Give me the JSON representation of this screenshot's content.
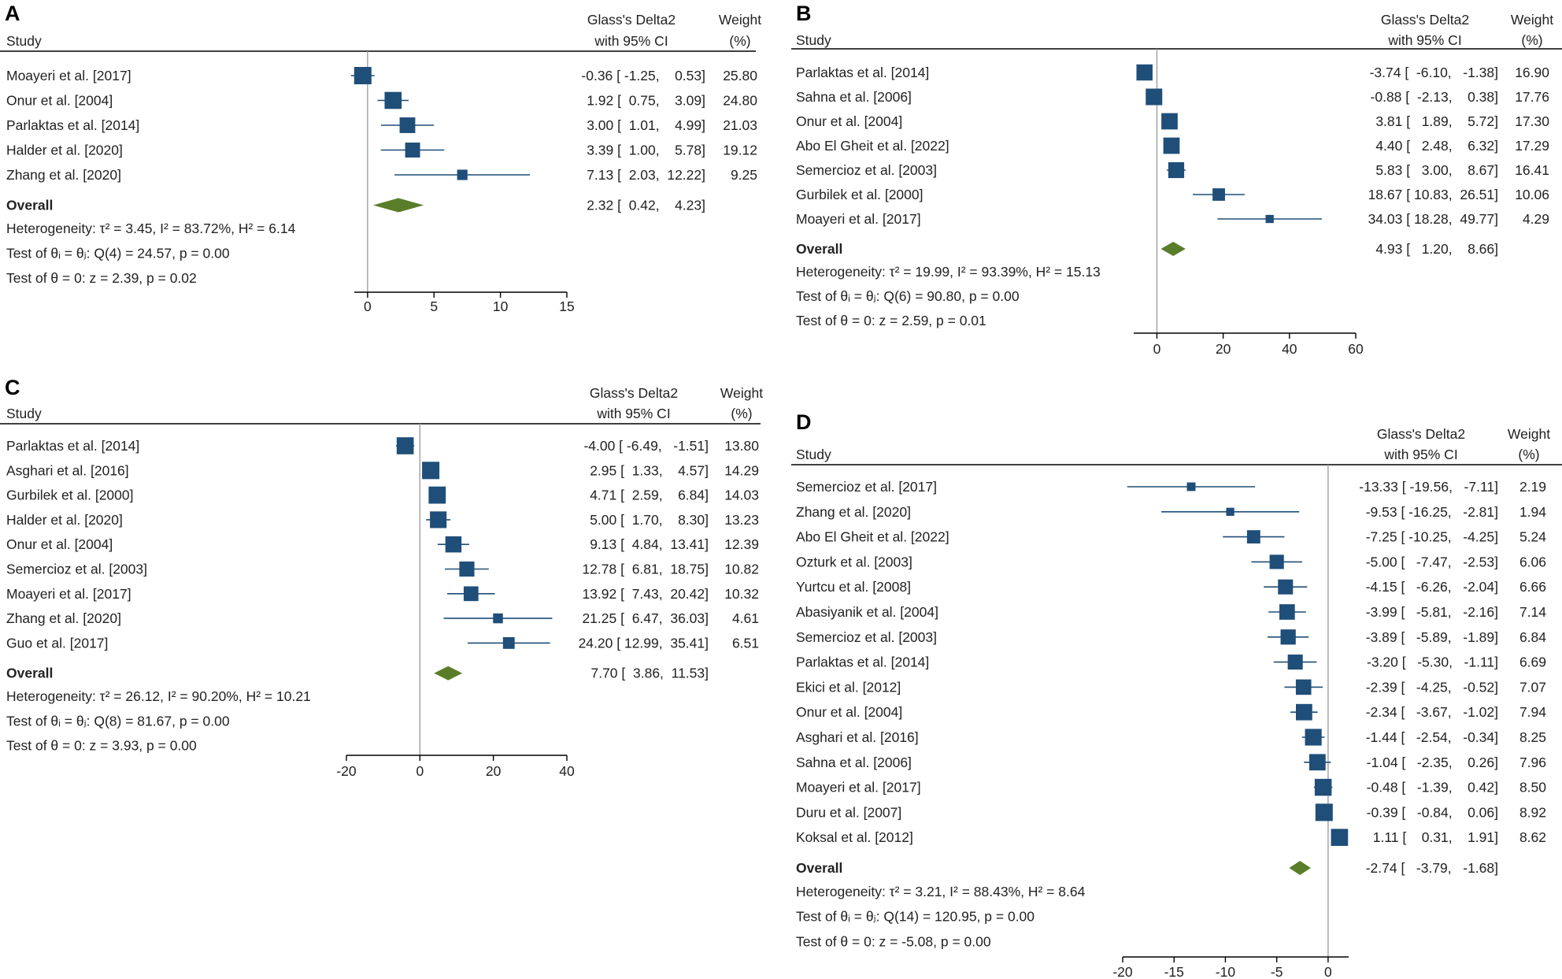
{
  "figure": {
    "colors": {
      "marker": "#1f4e79",
      "diamond": "#5a7d2a",
      "line": "#000000",
      "ref_line": "#9e9e9e"
    }
  },
  "chart_data": [
    {
      "type": "forest",
      "panel": "A",
      "header": {
        "study": "Study",
        "effect_line1": "Glass's Delta2",
        "effect_line2": "with 95% CI",
        "weight_line1": "Weight",
        "weight_line2": "(%)"
      },
      "studies": [
        {
          "name": "Moayeri et al. [2017]",
          "effect": -0.36,
          "lo": -1.25,
          "hi": 0.53,
          "weight": 25.8,
          "ci_text": "-0.36 [ -1.25,    0.53]",
          "weight_text": "25.80"
        },
        {
          "name": "Onur et al. [2004]",
          "effect": 1.92,
          "lo": 0.75,
          "hi": 3.09,
          "weight": 24.8,
          "ci_text": "1.92 [  0.75,    3.09]",
          "weight_text": "24.80"
        },
        {
          "name": "Parlaktas et al. [2014]",
          "effect": 3.0,
          "lo": 1.01,
          "hi": 4.99,
          "weight": 21.03,
          "ci_text": "3.00 [  1.01,    4.99]",
          "weight_text": "21.03"
        },
        {
          "name": "Halder et al. [2020]",
          "effect": 3.39,
          "lo": 1.0,
          "hi": 5.78,
          "weight": 19.12,
          "ci_text": "3.39 [  1.00,    5.78]",
          "weight_text": "19.12"
        },
        {
          "name": "Zhang et al. [2020]",
          "effect": 7.13,
          "lo": 2.03,
          "hi": 12.22,
          "weight": 9.25,
          "ci_text": "7.13 [  2.03,  12.22]",
          "weight_text": "9.25"
        }
      ],
      "overall": {
        "label": "Overall",
        "effect": 2.32,
        "lo": 0.42,
        "hi": 4.23,
        "ci_text": "2.32 [  0.42,    4.23]"
      },
      "stats": {
        "heterogeneity": "Heterogeneity: τ² = 3.45, I² = 83.72%, H² = 6.14",
        "homogeneity": "Test of θᵢ = θⱼ: Q(4) = 24.57, p = 0.00",
        "theta": "Test of θ = 0: z = 2.39, p = 0.02"
      },
      "axis": {
        "min": -1,
        "max": 15,
        "ticks": [
          0,
          5,
          10,
          15
        ]
      }
    },
    {
      "type": "forest",
      "panel": "B",
      "header": {
        "study": "Study",
        "effect_line1": "Glass's Delta2",
        "effect_line2": "with 95% CI",
        "weight_line1": "Weight",
        "weight_line2": "(%)"
      },
      "studies": [
        {
          "name": "Parlaktas et al. [2014]",
          "effect": -3.74,
          "lo": -6.1,
          "hi": -1.38,
          "weight": 16.9,
          "ci_text": "-3.74 [  -6.10,   -1.38]",
          "weight_text": "16.90"
        },
        {
          "name": "Sahna et al. [2006]",
          "effect": -0.88,
          "lo": -2.13,
          "hi": 0.38,
          "weight": 17.76,
          "ci_text": "-0.88 [  -2.13,    0.38]",
          "weight_text": "17.76"
        },
        {
          "name": "Onur et al. [2004]",
          "effect": 3.81,
          "lo": 1.89,
          "hi": 5.72,
          "weight": 17.3,
          "ci_text": "3.81 [   1.89,    5.72]",
          "weight_text": "17.30"
        },
        {
          "name": "Abo El Gheit et al. [2022]",
          "effect": 4.4,
          "lo": 2.48,
          "hi": 6.32,
          "weight": 17.29,
          "ci_text": "4.40 [   2.48,    6.32]",
          "weight_text": "17.29"
        },
        {
          "name": "Semercioz et al. [2003]",
          "effect": 5.83,
          "lo": 3.0,
          "hi": 8.67,
          "weight": 16.41,
          "ci_text": "5.83 [   3.00,    8.67]",
          "weight_text": "16.41"
        },
        {
          "name": "Gurbilek et al. [2000]",
          "effect": 18.67,
          "lo": 10.83,
          "hi": 26.51,
          "weight": 10.06,
          "ci_text": "18.67 [ 10.83,  26.51]",
          "weight_text": "10.06"
        },
        {
          "name": "Moayeri et al. [2017]",
          "effect": 34.03,
          "lo": 18.28,
          "hi": 49.77,
          "weight": 4.29,
          "ci_text": "34.03 [ 18.28,  49.77]",
          "weight_text": "4.29"
        }
      ],
      "overall": {
        "label": "Overall",
        "effect": 4.93,
        "lo": 1.2,
        "hi": 8.66,
        "ci_text": "4.93 [   1.20,    8.66]"
      },
      "stats": {
        "heterogeneity": "Heterogeneity: τ² = 19.99, I² = 93.39%, H² = 15.13",
        "homogeneity": "Test of θᵢ = θⱼ: Q(6) = 90.80, p = 0.00",
        "theta": "Test of θ = 0: z = 2.59, p = 0.01"
      },
      "axis": {
        "min": -7,
        "max": 60,
        "ticks": [
          0,
          20,
          40,
          60
        ]
      }
    },
    {
      "type": "forest",
      "panel": "C",
      "header": {
        "study": "Study",
        "effect_line1": "Glass's Delta2",
        "effect_line2": "with 95% CI",
        "weight_line1": "Weight",
        "weight_line2": "(%)"
      },
      "studies": [
        {
          "name": "Parlaktas et al. [2014]",
          "effect": -4.0,
          "lo": -6.49,
          "hi": -1.51,
          "weight": 13.8,
          "ci_text": "-4.00 [ -6.49,   -1.51]",
          "weight_text": "13.80"
        },
        {
          "name": "Asghari et al. [2016]",
          "effect": 2.95,
          "lo": 1.33,
          "hi": 4.57,
          "weight": 14.29,
          "ci_text": "2.95 [  1.33,    4.57]",
          "weight_text": "14.29"
        },
        {
          "name": "Gurbilek et al. [2000]",
          "effect": 4.71,
          "lo": 2.59,
          "hi": 6.84,
          "weight": 14.03,
          "ci_text": "4.71 [  2.59,    6.84]",
          "weight_text": "14.03"
        },
        {
          "name": "Halder et al. [2020]",
          "effect": 5.0,
          "lo": 1.7,
          "hi": 8.3,
          "weight": 13.23,
          "ci_text": "5.00 [  1.70,    8.30]",
          "weight_text": "13.23"
        },
        {
          "name": "Onur et al. [2004]",
          "effect": 9.13,
          "lo": 4.84,
          "hi": 13.41,
          "weight": 12.39,
          "ci_text": "9.13 [  4.84,  13.41]",
          "weight_text": "12.39"
        },
        {
          "name": "Semercioz et al. [2003]",
          "effect": 12.78,
          "lo": 6.81,
          "hi": 18.75,
          "weight": 10.82,
          "ci_text": "12.78 [  6.81,  18.75]",
          "weight_text": "10.82"
        },
        {
          "name": "Moayeri et al. [2017]",
          "effect": 13.92,
          "lo": 7.43,
          "hi": 20.42,
          "weight": 10.32,
          "ci_text": "13.92 [  7.43,  20.42]",
          "weight_text": "10.32"
        },
        {
          "name": "Zhang et al. [2020]",
          "effect": 21.25,
          "lo": 6.47,
          "hi": 36.03,
          "weight": 4.61,
          "ci_text": "21.25 [  6.47,  36.03]",
          "weight_text": "4.61"
        },
        {
          "name": "Guo et al. [2017]",
          "effect": 24.2,
          "lo": 12.99,
          "hi": 35.41,
          "weight": 6.51,
          "ci_text": "24.20 [ 12.99,  35.41]",
          "weight_text": "6.51"
        }
      ],
      "overall": {
        "label": "Overall",
        "effect": 7.7,
        "lo": 3.86,
        "hi": 11.53,
        "ci_text": "7.70 [  3.86,  11.53]"
      },
      "stats": {
        "heterogeneity": "Heterogeneity: τ² = 26.12, I² = 90.20%, H² = 10.21",
        "homogeneity": "Test of θᵢ = θⱼ: Q(8) = 81.67, p = 0.00",
        "theta": "Test of θ = 0: z = 3.93, p = 0.00"
      },
      "axis": {
        "min": -20,
        "max": 40,
        "ticks": [
          -20,
          0,
          20,
          40
        ]
      }
    },
    {
      "type": "forest",
      "panel": "D",
      "header": {
        "study": "Study",
        "effect_line1": "Glass's Delta2",
        "effect_line2": "with 95% CI",
        "weight_line1": "Weight",
        "weight_line2": "(%)"
      },
      "studies": [
        {
          "name": "Semercioz et al. [2017]",
          "effect": -13.33,
          "lo": -19.56,
          "hi": -7.11,
          "weight": 2.19,
          "ci_text": "-13.33 [ -19.56,   -7.11]",
          "weight_text": "2.19"
        },
        {
          "name": "Zhang et al. [2020]",
          "effect": -9.53,
          "lo": -16.25,
          "hi": -2.81,
          "weight": 1.94,
          "ci_text": "-9.53 [ -16.25,   -2.81]",
          "weight_text": "1.94"
        },
        {
          "name": "Abo El Gheit et al. [2022]",
          "effect": -7.25,
          "lo": -10.25,
          "hi": -4.25,
          "weight": 5.24,
          "ci_text": "-7.25 [ -10.25,   -4.25]",
          "weight_text": "5.24"
        },
        {
          "name": "Ozturk et al. [2003]",
          "effect": -5.0,
          "lo": -7.47,
          "hi": -2.53,
          "weight": 6.06,
          "ci_text": "-5.00 [   -7.47,   -2.53]",
          "weight_text": "6.06"
        },
        {
          "name": "Yurtcu et al. [2008]",
          "effect": -4.15,
          "lo": -6.26,
          "hi": -2.04,
          "weight": 6.66,
          "ci_text": "-4.15 [   -6.26,   -2.04]",
          "weight_text": "6.66"
        },
        {
          "name": "Abasiyanik et al. [2004]",
          "effect": -3.99,
          "lo": -5.81,
          "hi": -2.16,
          "weight": 7.14,
          "ci_text": "-3.99 [   -5.81,   -2.16]",
          "weight_text": "7.14"
        },
        {
          "name": "Semercioz et al. [2003]",
          "effect": -3.89,
          "lo": -5.89,
          "hi": -1.89,
          "weight": 6.84,
          "ci_text": "-3.89 [   -5.89,   -1.89]",
          "weight_text": "6.84"
        },
        {
          "name": "Parlaktas et al. [2014]",
          "effect": -3.2,
          "lo": -5.3,
          "hi": -1.11,
          "weight": 6.69,
          "ci_text": "-3.20 [   -5.30,   -1.11]",
          "weight_text": "6.69"
        },
        {
          "name": "Ekici et al. [2012]",
          "effect": -2.39,
          "lo": -4.25,
          "hi": -0.52,
          "weight": 7.07,
          "ci_text": "-2.39 [   -4.25,   -0.52]",
          "weight_text": "7.07"
        },
        {
          "name": "Onur et al. [2004]",
          "effect": -2.34,
          "lo": -3.67,
          "hi": -1.02,
          "weight": 7.94,
          "ci_text": "-2.34 [   -3.67,   -1.02]",
          "weight_text": "7.94"
        },
        {
          "name": "Asghari et al. [2016]",
          "effect": -1.44,
          "lo": -2.54,
          "hi": -0.34,
          "weight": 8.25,
          "ci_text": "-1.44 [   -2.54,   -0.34]",
          "weight_text": "8.25"
        },
        {
          "name": "Sahna et al. [2006]",
          "effect": -1.04,
          "lo": -2.35,
          "hi": 0.26,
          "weight": 7.96,
          "ci_text": "-1.04 [   -2.35,    0.26]",
          "weight_text": "7.96"
        },
        {
          "name": "Moayeri et al. [2017]",
          "effect": -0.48,
          "lo": -1.39,
          "hi": 0.42,
          "weight": 8.5,
          "ci_text": "-0.48 [   -1.39,    0.42]",
          "weight_text": "8.50"
        },
        {
          "name": "Duru et al. [2007]",
          "effect": -0.39,
          "lo": -0.84,
          "hi": 0.06,
          "weight": 8.92,
          "ci_text": "-0.39 [   -0.84,    0.06]",
          "weight_text": "8.92"
        },
        {
          "name": "Koksal et al. [2012]",
          "effect": 1.11,
          "lo": 0.31,
          "hi": 1.91,
          "weight": 8.62,
          "ci_text": "1.11 [    0.31,    1.91]",
          "weight_text": "8.62"
        }
      ],
      "overall": {
        "label": "Overall",
        "effect": -2.74,
        "lo": -3.79,
        "hi": -1.68,
        "ci_text": "-2.74 [   -3.79,   -1.68]"
      },
      "stats": {
        "heterogeneity": "Heterogeneity: τ² = 3.21, I² = 88.43%, H² = 8.64",
        "homogeneity": "Test of θᵢ = θⱼ: Q(14) = 120.95, p = 0.00",
        "theta": "Test of θ = 0: z = -5.08, p = 0.00"
      },
      "axis": {
        "min": -20,
        "max": 2,
        "ticks": [
          -20,
          -15,
          -10,
          -5,
          0
        ]
      }
    }
  ]
}
